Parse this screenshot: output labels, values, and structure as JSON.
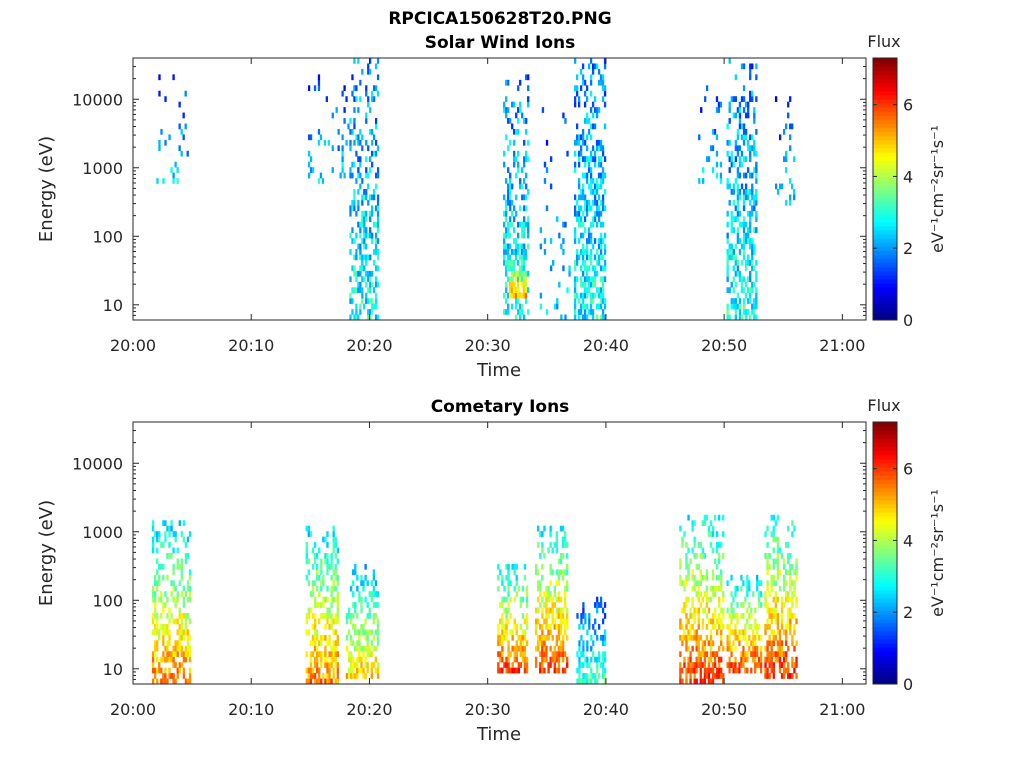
{
  "figure": {
    "title": "RPCICA150628T20.PNG"
  },
  "chart_data": [
    {
      "type": "heatmap",
      "title": "Solar Wind Ions",
      "xlabel": "Time",
      "ylabel": "Energy (eV)",
      "yscale": "log",
      "ylim": [
        6,
        40000
      ],
      "xlim": [
        "20:00",
        "21:02"
      ],
      "x_ticks": [
        "20:00",
        "20:10",
        "20:20",
        "20:30",
        "20:40",
        "20:50",
        "21:00"
      ],
      "y_ticks": [
        "10",
        "100",
        "1000",
        "10000"
      ],
      "colorbar": {
        "title": "Flux",
        "label": "eV⁻¹cm⁻²sr⁻¹s⁻¹",
        "range": [
          0,
          7.3
        ],
        "ticks": [
          "0",
          "2",
          "4",
          "6"
        ],
        "colormap": "jet"
      },
      "bursts": [
        {
          "t0": "20:01.8",
          "t1": "20:04.7",
          "emin": 600,
          "emax": 20000,
          "level": 2.5,
          "density": 0.12
        },
        {
          "t0": "20:14.8",
          "t1": "20:18.3",
          "emin": 600,
          "emax": 20000,
          "level": 2.5,
          "density": 0.1
        },
        {
          "t0": "20:18.3",
          "t1": "20:20.8",
          "emin": 6,
          "emax": 35000,
          "level": 1.0,
          "density": 0.45
        },
        {
          "t0": "20:31.3",
          "t1": "20:33.5",
          "emin": 6,
          "emax": 20000,
          "level": 1.0,
          "density": 0.45
        },
        {
          "t0": "20:31.8",
          "t1": "20:33.3",
          "emin": 15,
          "emax": 60,
          "level": 4.8,
          "density": 0.7
        },
        {
          "t0": "20:34.4",
          "t1": "20:37.0",
          "emin": 6,
          "emax": 15000,
          "level": 2.5,
          "density": 0.08
        },
        {
          "t0": "20:37.3",
          "t1": "20:40.0",
          "emin": 6,
          "emax": 35000,
          "level": 1.0,
          "density": 0.5
        },
        {
          "t0": "20:47.8",
          "t1": "20:49.8",
          "emin": 600,
          "emax": 15000,
          "level": 2.5,
          "density": 0.12
        },
        {
          "t0": "20:50.2",
          "t1": "20:52.8",
          "emin": 6,
          "emax": 35000,
          "level": 1.0,
          "density": 0.45
        },
        {
          "t0": "20:54.3",
          "t1": "20:56.0",
          "emin": 300,
          "emax": 10000,
          "level": 2.5,
          "density": 0.15
        }
      ]
    },
    {
      "type": "heatmap",
      "title": "Cometary Ions",
      "xlabel": "Time",
      "ylabel": "Energy (eV)",
      "yscale": "log",
      "ylim": [
        6,
        40000
      ],
      "xlim": [
        "20:00",
        "21:02"
      ],
      "x_ticks": [
        "20:00",
        "20:10",
        "20:20",
        "20:30",
        "20:40",
        "20:50",
        "21:00"
      ],
      "y_ticks": [
        "10",
        "100",
        "1000",
        "10000"
      ],
      "colorbar": {
        "title": "Flux",
        "label": "eV⁻¹cm⁻²sr⁻¹s⁻¹",
        "range": [
          0,
          7.3
        ],
        "ticks": [
          "0",
          "2",
          "4",
          "6"
        ],
        "colormap": "jet"
      },
      "bursts": [
        {
          "t0": "20:01.6",
          "t1": "20:04.9",
          "emin": 6,
          "emax": 1300,
          "level": 5.5,
          "density": 0.55
        },
        {
          "t0": "20:14.6",
          "t1": "20:17.4",
          "emin": 6,
          "emax": 1100,
          "level": 5.5,
          "density": 0.55
        },
        {
          "t0": "20:18.0",
          "t1": "20:20.8",
          "emin": 8,
          "emax": 300,
          "level": 4.8,
          "density": 0.55
        },
        {
          "t0": "20:30.8",
          "t1": "20:33.4",
          "emin": 10,
          "emax": 300,
          "level": 5.8,
          "density": 0.6
        },
        {
          "t0": "20:34.0",
          "t1": "20:36.8",
          "emin": 10,
          "emax": 1200,
          "level": 5.8,
          "density": 0.55
        },
        {
          "t0": "20:37.5",
          "t1": "20:40.0",
          "emin": 6,
          "emax": 100,
          "level": 3.2,
          "density": 0.5
        },
        {
          "t0": "20:46.2",
          "t1": "20:50.0",
          "emin": 6,
          "emax": 1500,
          "level": 6.0,
          "density": 0.5
        },
        {
          "t0": "20:50.2",
          "t1": "20:53.2",
          "emin": 10,
          "emax": 200,
          "level": 5.8,
          "density": 0.55
        },
        {
          "t0": "20:53.4",
          "t1": "20:56.2",
          "emin": 8,
          "emax": 1500,
          "level": 6.0,
          "density": 0.55
        }
      ]
    }
  ]
}
